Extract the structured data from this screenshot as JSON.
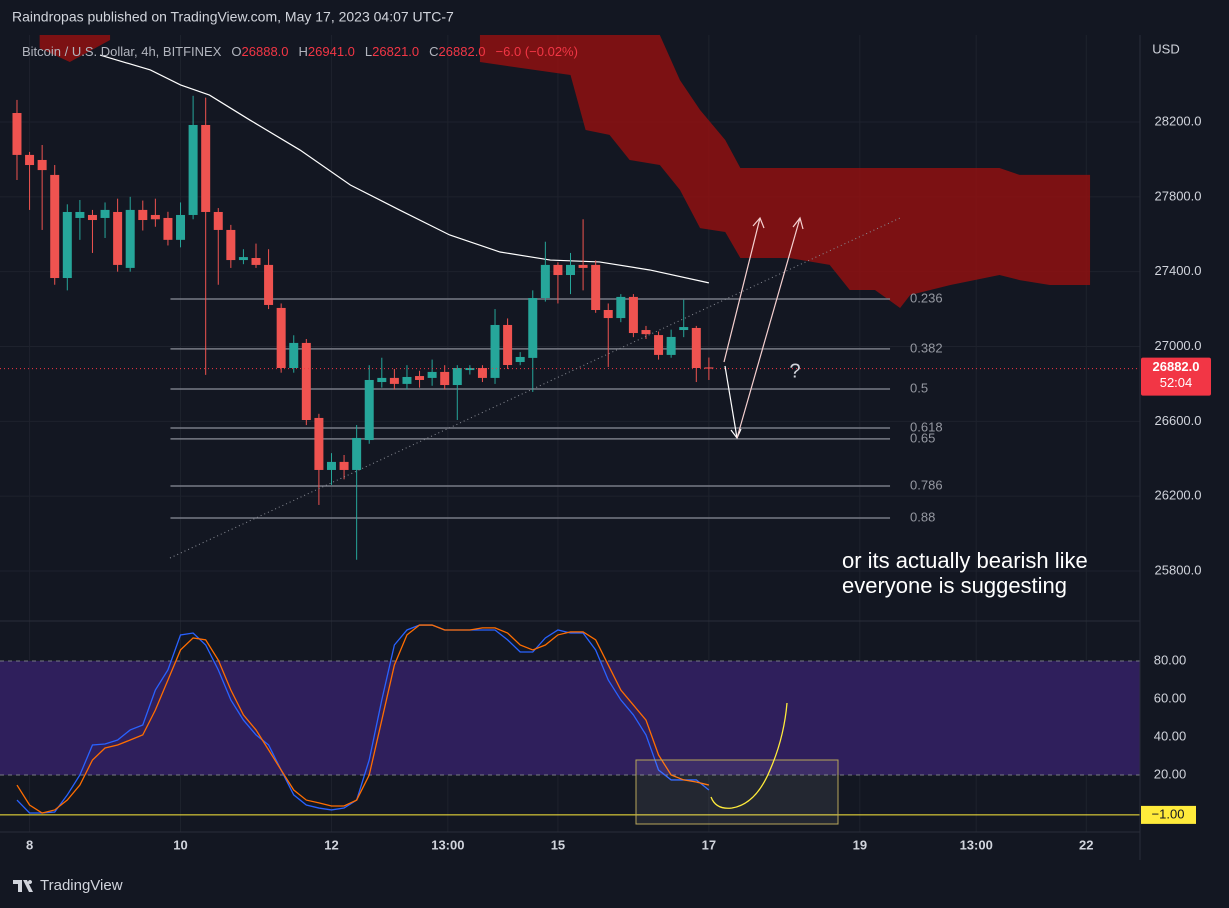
{
  "page_header": "Raindropas published on TradingView.com, May 17, 2023 04:07 UTC-7",
  "footer": "TradingView",
  "chart_data": [
    {
      "type": "candlestick",
      "title": "Bitcoin / U.S. Dollar, 4h, BITFINEX",
      "ohlc": [
        {
          "key": "O",
          "value": "26888.0"
        },
        {
          "key": "H",
          "value": "26941.0"
        },
        {
          "key": "L",
          "value": "26821.0"
        },
        {
          "key": "C",
          "value": "26882.0"
        }
      ],
      "change": "−6.0 (−0.02%)",
      "y_axis_label": "USD",
      "ylim": [
        25538,
        28665
      ],
      "yticks": [
        {
          "value": 28200,
          "label": "28200.0"
        },
        {
          "value": 27800,
          "label": "27800.0"
        },
        {
          "value": 27400,
          "label": "27400.0"
        },
        {
          "value": 27000,
          "label": "27000.0"
        },
        {
          "value": 26600,
          "label": "26600.0"
        },
        {
          "value": 26200,
          "label": "26200.0"
        },
        {
          "value": 25800,
          "label": "25800.0"
        }
      ],
      "xlim": [
        -1.35,
        89.27
      ],
      "xticks": [
        {
          "value": 1,
          "label": "8"
        },
        {
          "value": 13,
          "label": "10"
        },
        {
          "value": 25,
          "label": "12"
        },
        {
          "value": 34.25,
          "label": "13:00"
        },
        {
          "value": 43,
          "label": "15"
        },
        {
          "value": 55,
          "label": "17"
        },
        {
          "value": 67,
          "label": "19"
        },
        {
          "value": 76.25,
          "label": "13:00"
        },
        {
          "value": 85,
          "label": "22"
        }
      ],
      "grid": true,
      "up_color": "#26a69a",
      "down_color": "#ef5350",
      "open": [
        28248,
        28024,
        27997,
        27917,
        27366,
        27687,
        27703,
        27687,
        27719,
        27420,
        27730,
        27703,
        27687,
        27570,
        27703,
        28184,
        27719,
        27623,
        27462,
        27473,
        27436,
        27206,
        26885,
        27019,
        26618,
        26340,
        26383,
        26340,
        26500,
        26810,
        26832,
        26800,
        26842,
        26832,
        26864,
        26794,
        26874,
        26885,
        26832,
        27115,
        26917,
        26939,
        27259,
        27436,
        27382,
        27436,
        27436,
        27195,
        27152,
        27265,
        27088,
        27061,
        26955,
        27088,
        27099,
        26888
      ],
      "high": [
        28318,
        28040,
        28077,
        27970,
        27760,
        27783,
        27730,
        27770,
        27790,
        27800,
        27780,
        27790,
        27720,
        27770,
        28340,
        28330,
        27740,
        27650,
        27520,
        27550,
        27520,
        27230,
        27060,
        27040,
        26640,
        26430,
        26420,
        26580,
        26900,
        26940,
        26880,
        26900,
        26870,
        26930,
        26900,
        26900,
        26900,
        26900,
        27200,
        27150,
        26970,
        27300,
        27560,
        27450,
        27500,
        27680,
        27460,
        27230,
        27280,
        27280,
        27110,
        27080,
        27090,
        27250,
        27110,
        26941
      ],
      "low": [
        27890,
        27730,
        27623,
        27330,
        27300,
        27570,
        27500,
        27580,
        27400,
        27400,
        27620,
        27640,
        27540,
        27530,
        27680,
        26848,
        27330,
        27420,
        27440,
        27420,
        27200,
        26860,
        26860,
        26580,
        26153,
        26260,
        26290,
        25860,
        26480,
        26780,
        26770,
        26770,
        26780,
        26790,
        26770,
        26607,
        26850,
        26810,
        26800,
        26880,
        26900,
        26757,
        27240,
        27230,
        27280,
        27300,
        27180,
        26890,
        27130,
        27050,
        27040,
        26930,
        26940,
        27050,
        26810,
        26821
      ],
      "close": [
        28024,
        27970,
        27943,
        27366,
        27719,
        27719,
        27676,
        27730,
        27436,
        27730,
        27676,
        27680,
        27570,
        27703,
        28184,
        27719,
        27623,
        27462,
        27478,
        27436,
        27222,
        26885,
        27019,
        26607,
        26340,
        26383,
        26340,
        26511,
        26821,
        26832,
        26800,
        26837,
        26821,
        26864,
        26794,
        26885,
        26885,
        26832,
        27115,
        26901,
        26944,
        27259,
        27436,
        27382,
        27436,
        27420,
        27195,
        27152,
        27265,
        27072,
        27066,
        26955,
        27051,
        27104,
        26885,
        26882
      ],
      "moving_average": {
        "color": "#ffffff",
        "x": [
          6.6,
          10.6,
          13,
          15.3,
          18.5,
          22.5,
          26.5,
          30.4,
          34.4,
          38.4,
          42.4,
          46.3,
          50.3,
          55
        ],
        "values": [
          28558,
          28478,
          28398,
          28344,
          28211,
          28050,
          27863,
          27730,
          27596,
          27505,
          27462,
          27452,
          27409,
          27340
        ]
      },
      "cloud": {
        "color": "#8f1010",
        "x": [
          1.8,
          4.2,
          7.4,
          null,
          36.8,
          40.0,
          44.0,
          45.2,
          47.1,
          48.7,
          51.1,
          52.7,
          54.3,
          56.3,
          57.5,
          61.4,
          64.6,
          66.2,
          68.2,
          70.2,
          71.0,
          74.2,
          78.1,
          79.7,
          82.1,
          85.3
        ],
        "upper": [
          28665,
          28665,
          28665,
          null,
          28665,
          28665,
          28665,
          28665,
          28665,
          28665,
          28665,
          28424,
          28264,
          28104,
          27954,
          27954,
          27954,
          27954,
          27954,
          27954,
          27954,
          27954,
          27954,
          27917,
          27917,
          27917
        ],
        "lower": [
          28595,
          28521,
          28638,
          null,
          28521,
          28489,
          28451,
          28157,
          28131,
          27997,
          27970,
          27837,
          27633,
          27612,
          27473,
          27473,
          27436,
          27302,
          27302,
          27206,
          27275,
          27329,
          27382,
          27355,
          27329,
          27329
        ]
      },
      "fib_levels": {
        "x_range": [
          12.2,
          69.4
        ],
        "color": "#787b86",
        "labels": [
          "0.236",
          "0.382",
          "0.5",
          "0.618",
          "0.65",
          "0.786",
          "0.88"
        ],
        "prices": [
          27254,
          26987,
          26773,
          26564,
          26506,
          26254,
          26083
        ]
      },
      "last_price": {
        "value": 26882,
        "label": "26882.0",
        "countdown": "52:04",
        "color": "#f23645"
      },
      "annotation": [
        "or its actually bearish like",
        "everyone is suggesting"
      ],
      "question": "?"
    },
    {
      "type": "line",
      "ylim": [
        -10,
        100.5
      ],
      "yticks": [
        {
          "value": 80,
          "label": "80.00"
        },
        {
          "value": 60,
          "label": "60.00"
        },
        {
          "value": 40,
          "label": "40.00"
        },
        {
          "value": 20,
          "label": "20.00"
        }
      ],
      "band": [
        20,
        80
      ],
      "band_color": "#2f1f5c",
      "hline": {
        "value": -1,
        "label": "−1.00",
        "color": "#ffeb3b"
      },
      "series": [
        {
          "color": "#2962ff",
          "values": [
            6.8,
            0,
            0,
            0.5,
            9.5,
            20,
            35.8,
            36.3,
            38.4,
            43.7,
            46.3,
            64.7,
            75.3,
            93.7,
            94.7,
            88.4,
            75.3,
            59.5,
            48.9,
            41.1,
            35.8,
            22.6,
            9.5,
            4.2,
            2.6,
            1.6,
            2.6,
            6.8,
            27.9,
            59.5,
            88.4,
            96.3,
            98.9,
            98.9,
            96.3,
            96.3,
            96.3,
            96.3,
            96.3,
            91.1,
            84.7,
            84.7,
            92.1,
            96.3,
            94.7,
            94.7,
            85.8,
            70,
            59.5,
            51.6,
            41.1,
            22.6,
            17.4,
            17.4,
            17.4,
            12.1
          ]
        },
        {
          "color": "#ff6d00",
          "values": [
            14.7,
            4.2,
            0,
            1.6,
            6.8,
            14.7,
            27.9,
            34.2,
            35.8,
            38.4,
            41.1,
            54.2,
            70,
            85.8,
            92.1,
            91.1,
            80.5,
            64.7,
            51.6,
            43.7,
            33.2,
            22.6,
            12.1,
            6.8,
            5.3,
            3.7,
            3.7,
            6.8,
            20,
            48.9,
            77.9,
            93.7,
            98.9,
            98.9,
            96.3,
            96.3,
            96.3,
            97.4,
            97.4,
            94.7,
            88.4,
            85.8,
            88.4,
            93.7,
            95.3,
            95.3,
            91.1,
            77.9,
            64.7,
            56.8,
            48.9,
            30.5,
            20,
            17.4,
            16.3,
            14.7
          ]
        }
      ]
    }
  ]
}
